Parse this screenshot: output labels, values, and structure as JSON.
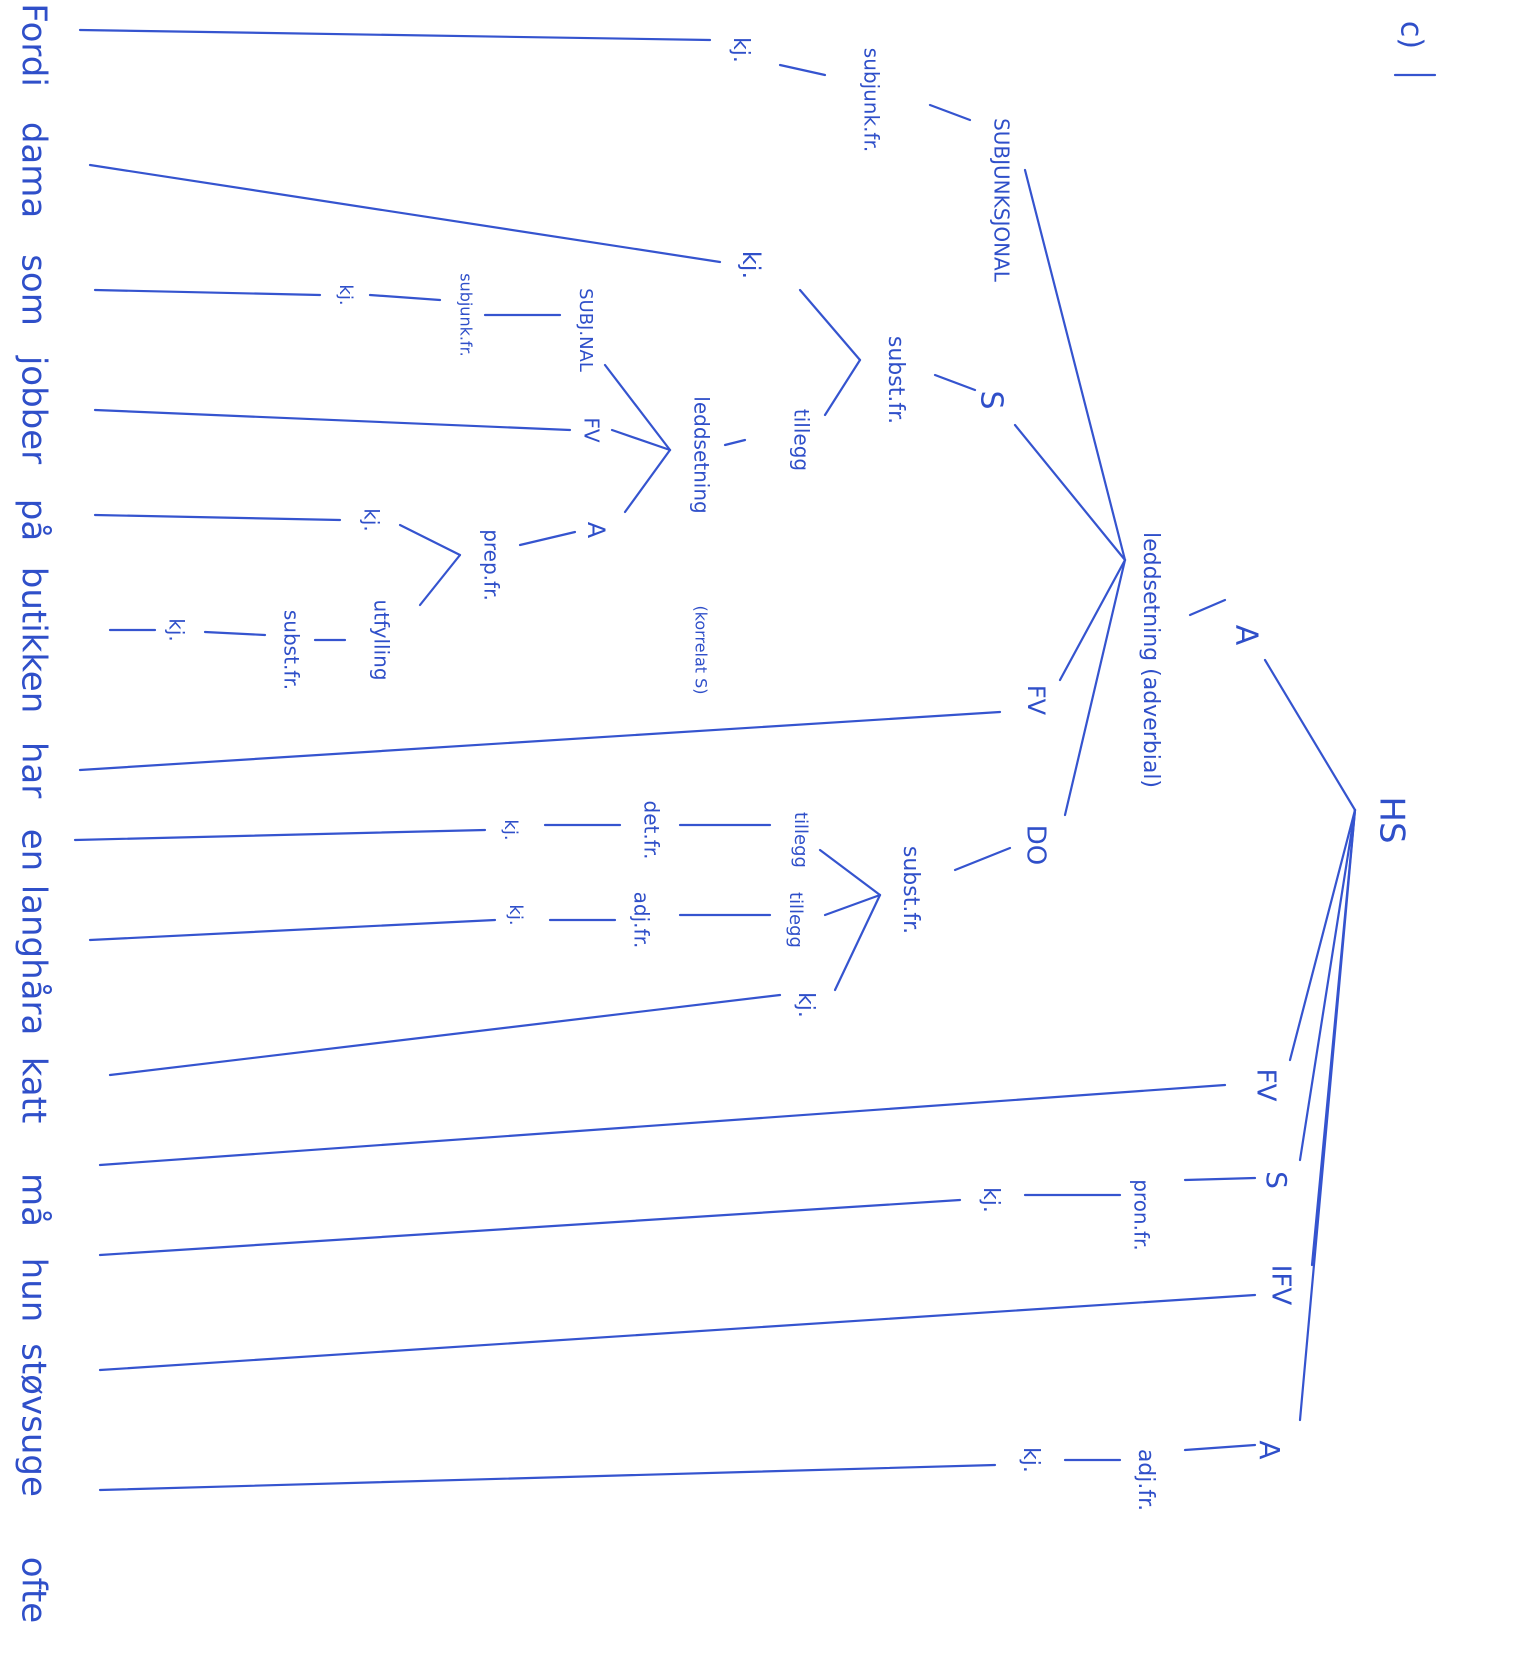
{
  "section_label": "c)",
  "nodes": [
    "HS",
    "A",
    "FV",
    "S",
    "IFV",
    "A",
    "leddsetning (adverbial)",
    "SUBJUNKSJONAL",
    "S",
    "FV",
    "DO",
    "subjunk.fr.",
    "kj.",
    "subst.fr.",
    "kj.",
    "tillegg",
    "leddsetning",
    "(korrelat S)",
    "SUBJ.NAL",
    "FV",
    "A",
    "subjunk.fr.",
    "kj.",
    "prep.fr.",
    "kj.",
    "utfylling",
    "subst.fr.",
    "kj.",
    "subst.fr.",
    "tillegg",
    "tillegg",
    "kj.",
    "det.fr.",
    "adj.fr.",
    "kj.",
    "kj.",
    "pron.fr.",
    "kj.",
    "adj.fr.",
    "kj."
  ],
  "words": [
    "Fordi",
    "dama",
    "som",
    "jobber",
    "på",
    "butikken",
    "har",
    "en",
    "langhåra",
    "katt",
    "må",
    "hun",
    "støvsuge",
    "ofte"
  ]
}
